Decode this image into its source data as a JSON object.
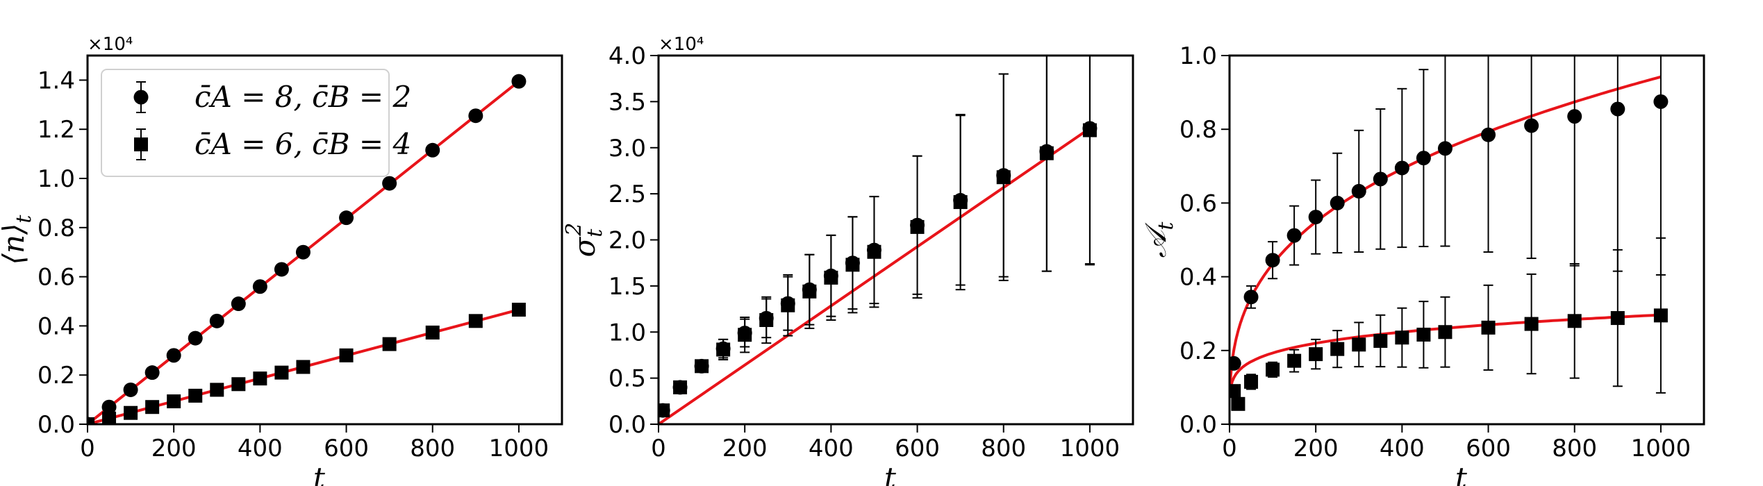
{
  "chart_data": [
    {
      "type": "scatter",
      "xlabel": "t",
      "ylabel": "⟨n⟩t",
      "offset_text": "×10⁴",
      "xlim": [
        0,
        1100
      ],
      "ylim": [
        0,
        1.5
      ],
      "xticks": [
        0,
        200,
        400,
        600,
        800,
        1000
      ],
      "xtick_labels": [
        "0",
        "200",
        "400",
        "600",
        "800",
        "1000"
      ],
      "yticks": [
        0,
        0.2,
        0.4,
        0.6,
        0.8,
        1.0,
        1.2,
        1.4
      ],
      "ytick_labels": [
        "0.0",
        "0.2",
        "0.4",
        "0.6",
        "0.8",
        "1.0",
        "1.2",
        "1.4"
      ],
      "legend": {
        "position": "upper-left",
        "entries": [
          "c̄A = 8, c̄B = 2",
          "c̄A = 6, c̄B = 4"
        ]
      },
      "series": [
        {
          "name": "c̄A = 8, c̄B = 2",
          "marker": "circle",
          "x": [
            0,
            50,
            100,
            150,
            200,
            250,
            300,
            350,
            400,
            450,
            500,
            600,
            700,
            800,
            900,
            1000
          ],
          "y": [
            0.0,
            0.07,
            0.14,
            0.21,
            0.28,
            0.35,
            0.42,
            0.49,
            0.56,
            0.63,
            0.7,
            0.84,
            0.98,
            1.115,
            1.255,
            1.395
          ],
          "fit_line": [
            [
              0,
              0.0
            ],
            [
              1000,
              1.395
            ]
          ]
        },
        {
          "name": "c̄A = 6, c̄B = 4",
          "marker": "square",
          "x": [
            0,
            50,
            100,
            150,
            200,
            250,
            300,
            350,
            400,
            450,
            500,
            600,
            700,
            800,
            900,
            1000
          ],
          "y": [
            0.0,
            0.023,
            0.046,
            0.07,
            0.093,
            0.116,
            0.14,
            0.163,
            0.186,
            0.21,
            0.233,
            0.28,
            0.326,
            0.373,
            0.42,
            0.466
          ],
          "fit_line": [
            [
              0,
              0.0
            ],
            [
              1000,
              0.466
            ]
          ]
        }
      ],
      "line_color": "#e8141a"
    },
    {
      "type": "scatter",
      "xlabel": "t",
      "ylabel": "σt²",
      "offset_text": "×10⁴",
      "xlim": [
        0,
        1100
      ],
      "ylim": [
        0,
        4.0
      ],
      "xticks": [
        0,
        200,
        400,
        600,
        800,
        1000
      ],
      "xtick_labels": [
        "0",
        "200",
        "400",
        "600",
        "800",
        "1000"
      ],
      "yticks": [
        0,
        0.5,
        1.0,
        1.5,
        2.0,
        2.5,
        3.0,
        3.5,
        4.0
      ],
      "ytick_labels": [
        "0.0",
        "0.5",
        "1.0",
        "1.5",
        "2.0",
        "2.5",
        "3.0",
        "3.5",
        "4.0"
      ],
      "series": [
        {
          "name": "",
          "marker": "circle",
          "x": [
            10,
            50,
            100,
            150,
            200,
            250,
            300,
            350,
            400,
            450,
            500,
            600,
            700,
            800,
            900,
            1000
          ],
          "y": [
            0.15,
            0.4,
            0.63,
            0.82,
            0.99,
            1.15,
            1.31,
            1.46,
            1.61,
            1.75,
            1.89,
            2.16,
            2.43,
            2.7,
            2.96,
            3.21
          ],
          "err": [
            0.02,
            0.05,
            0.06,
            0.1,
            0.15,
            0.21,
            0.29,
            0.38,
            0.44,
            0.5,
            0.58,
            0.75,
            0.92,
            1.1,
            1.3,
            1.48
          ]
        },
        {
          "name": "",
          "marker": "square",
          "x": [
            10,
            50,
            100,
            150,
            200,
            250,
            300,
            350,
            400,
            450,
            500,
            600,
            700,
            800,
            900,
            1000
          ],
          "y": [
            0.15,
            0.4,
            0.63,
            0.81,
            0.97,
            1.13,
            1.29,
            1.44,
            1.59,
            1.73,
            1.87,
            2.14,
            2.41,
            2.68,
            2.94,
            3.19
          ],
          "err": [
            0.02,
            0.05,
            0.06,
            0.11,
            0.19,
            0.25,
            0.33,
            0.4,
            0.46,
            0.52,
            0.6,
            0.77,
            0.95,
            1.12,
            1.28,
            1.45
          ]
        }
      ],
      "fit_line": [
        [
          0,
          0.0
        ],
        [
          1000,
          3.21
        ]
      ],
      "line_color": "#e8141a"
    },
    {
      "type": "scatter",
      "xlabel": "t",
      "ylabel": "𝒜t",
      "xlim": [
        0,
        1100
      ],
      "ylim": [
        0,
        1.0
      ],
      "xticks": [
        0,
        200,
        400,
        600,
        800,
        1000
      ],
      "xtick_labels": [
        "0",
        "200",
        "400",
        "600",
        "800",
        "1000"
      ],
      "yticks": [
        0,
        0.2,
        0.4,
        0.6,
        0.8,
        1.0
      ],
      "ytick_labels": [
        "0.0",
        "0.2",
        "0.4",
        "0.6",
        "0.8",
        "1.0"
      ],
      "series": [
        {
          "name": "",
          "marker": "circle",
          "x": [
            10,
            50,
            100,
            150,
            200,
            250,
            300,
            350,
            400,
            450,
            500,
            600,
            700,
            800,
            900,
            1000
          ],
          "y": [
            0.165,
            0.345,
            0.445,
            0.512,
            0.562,
            0.6,
            0.632,
            0.665,
            0.695,
            0.722,
            0.748,
            0.785,
            0.81,
            0.835,
            0.855,
            0.875
          ],
          "err": [
            0.01,
            0.03,
            0.05,
            0.08,
            0.1,
            0.135,
            0.165,
            0.19,
            0.215,
            0.24,
            0.265,
            0.318,
            0.36,
            0.405,
            0.44,
            0.47
          ],
          "fit_curve": "a*t^b",
          "fit_params": {
            "a": 0.0925,
            "b": 0.336
          }
        },
        {
          "name": "",
          "marker": "square",
          "x": [
            10,
            20,
            50,
            100,
            150,
            200,
            250,
            300,
            350,
            400,
            450,
            500,
            600,
            700,
            800,
            900,
            1000
          ],
          "y": [
            0.09,
            0.055,
            0.115,
            0.148,
            0.172,
            0.19,
            0.204,
            0.216,
            0.226,
            0.235,
            0.243,
            0.25,
            0.262,
            0.272,
            0.28,
            0.288,
            0.295
          ],
          "err": [
            0.01,
            0.01,
            0.02,
            0.02,
            0.03,
            0.04,
            0.05,
            0.06,
            0.07,
            0.08,
            0.09,
            0.095,
            0.115,
            0.135,
            0.155,
            0.185,
            0.21
          ],
          "fit_curve": "a*t^b",
          "fit_params": {
            "a": 0.082,
            "b": 0.186
          }
        }
      ],
      "line_color": "#e8141a"
    }
  ]
}
